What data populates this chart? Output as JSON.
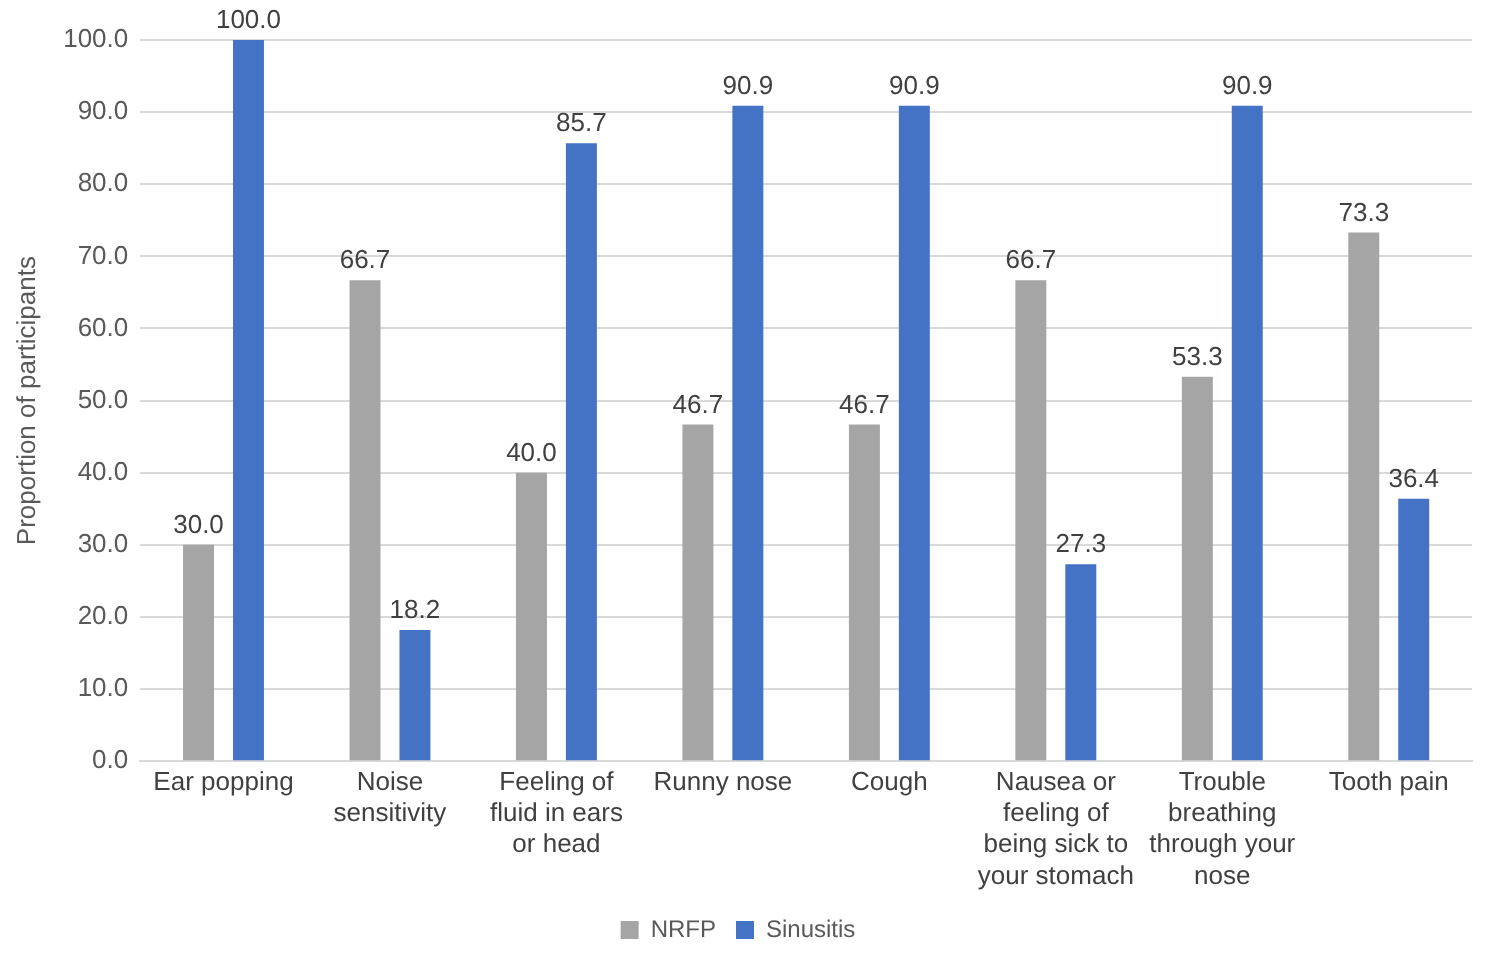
{
  "chart_data": {
    "type": "bar",
    "ylabel": "Proportion of participants",
    "categories": [
      "Ear popping",
      "Noise sensitivity",
      "Feeling of fluid in ears or head",
      "Runny nose",
      "Cough",
      "Nausea or feeling of being sick to your stomach",
      "Trouble breathing through your nose",
      "Tooth pain"
    ],
    "series": [
      {
        "name": "NRFP",
        "color": "#a5a5a5",
        "values": [
          30.0,
          66.7,
          40.0,
          46.7,
          46.7,
          66.7,
          53.3,
          73.3
        ],
        "value_labels": [
          "30.0",
          "66.7",
          "40.0",
          "46.7",
          "46.7",
          "66.7",
          "53.3",
          "73.3"
        ]
      },
      {
        "name": "Sinusitis",
        "color": "#4472c4",
        "values": [
          100.0,
          18.2,
          85.7,
          90.9,
          90.9,
          27.3,
          90.9,
          36.4
        ],
        "value_labels": [
          "100.0",
          "18.2",
          "85.7",
          "90.9",
          "90.9",
          "27.3",
          "90.9",
          "36.4"
        ]
      }
    ],
    "ylim": [
      0,
      100
    ],
    "yticks": [
      {
        "value": 0,
        "label": "0.0"
      },
      {
        "value": 10,
        "label": "10.0"
      },
      {
        "value": 20,
        "label": "20.0"
      },
      {
        "value": 30,
        "label": "30.0"
      },
      {
        "value": 40,
        "label": "40.0"
      },
      {
        "value": 50,
        "label": "50.0"
      },
      {
        "value": 60,
        "label": "60.0"
      },
      {
        "value": 70,
        "label": "70.0"
      },
      {
        "value": 80,
        "label": "80.0"
      },
      {
        "value": 90,
        "label": "90.0"
      },
      {
        "value": 100,
        "label": "100.0"
      }
    ],
    "grid": "y",
    "legend": "bottom"
  }
}
